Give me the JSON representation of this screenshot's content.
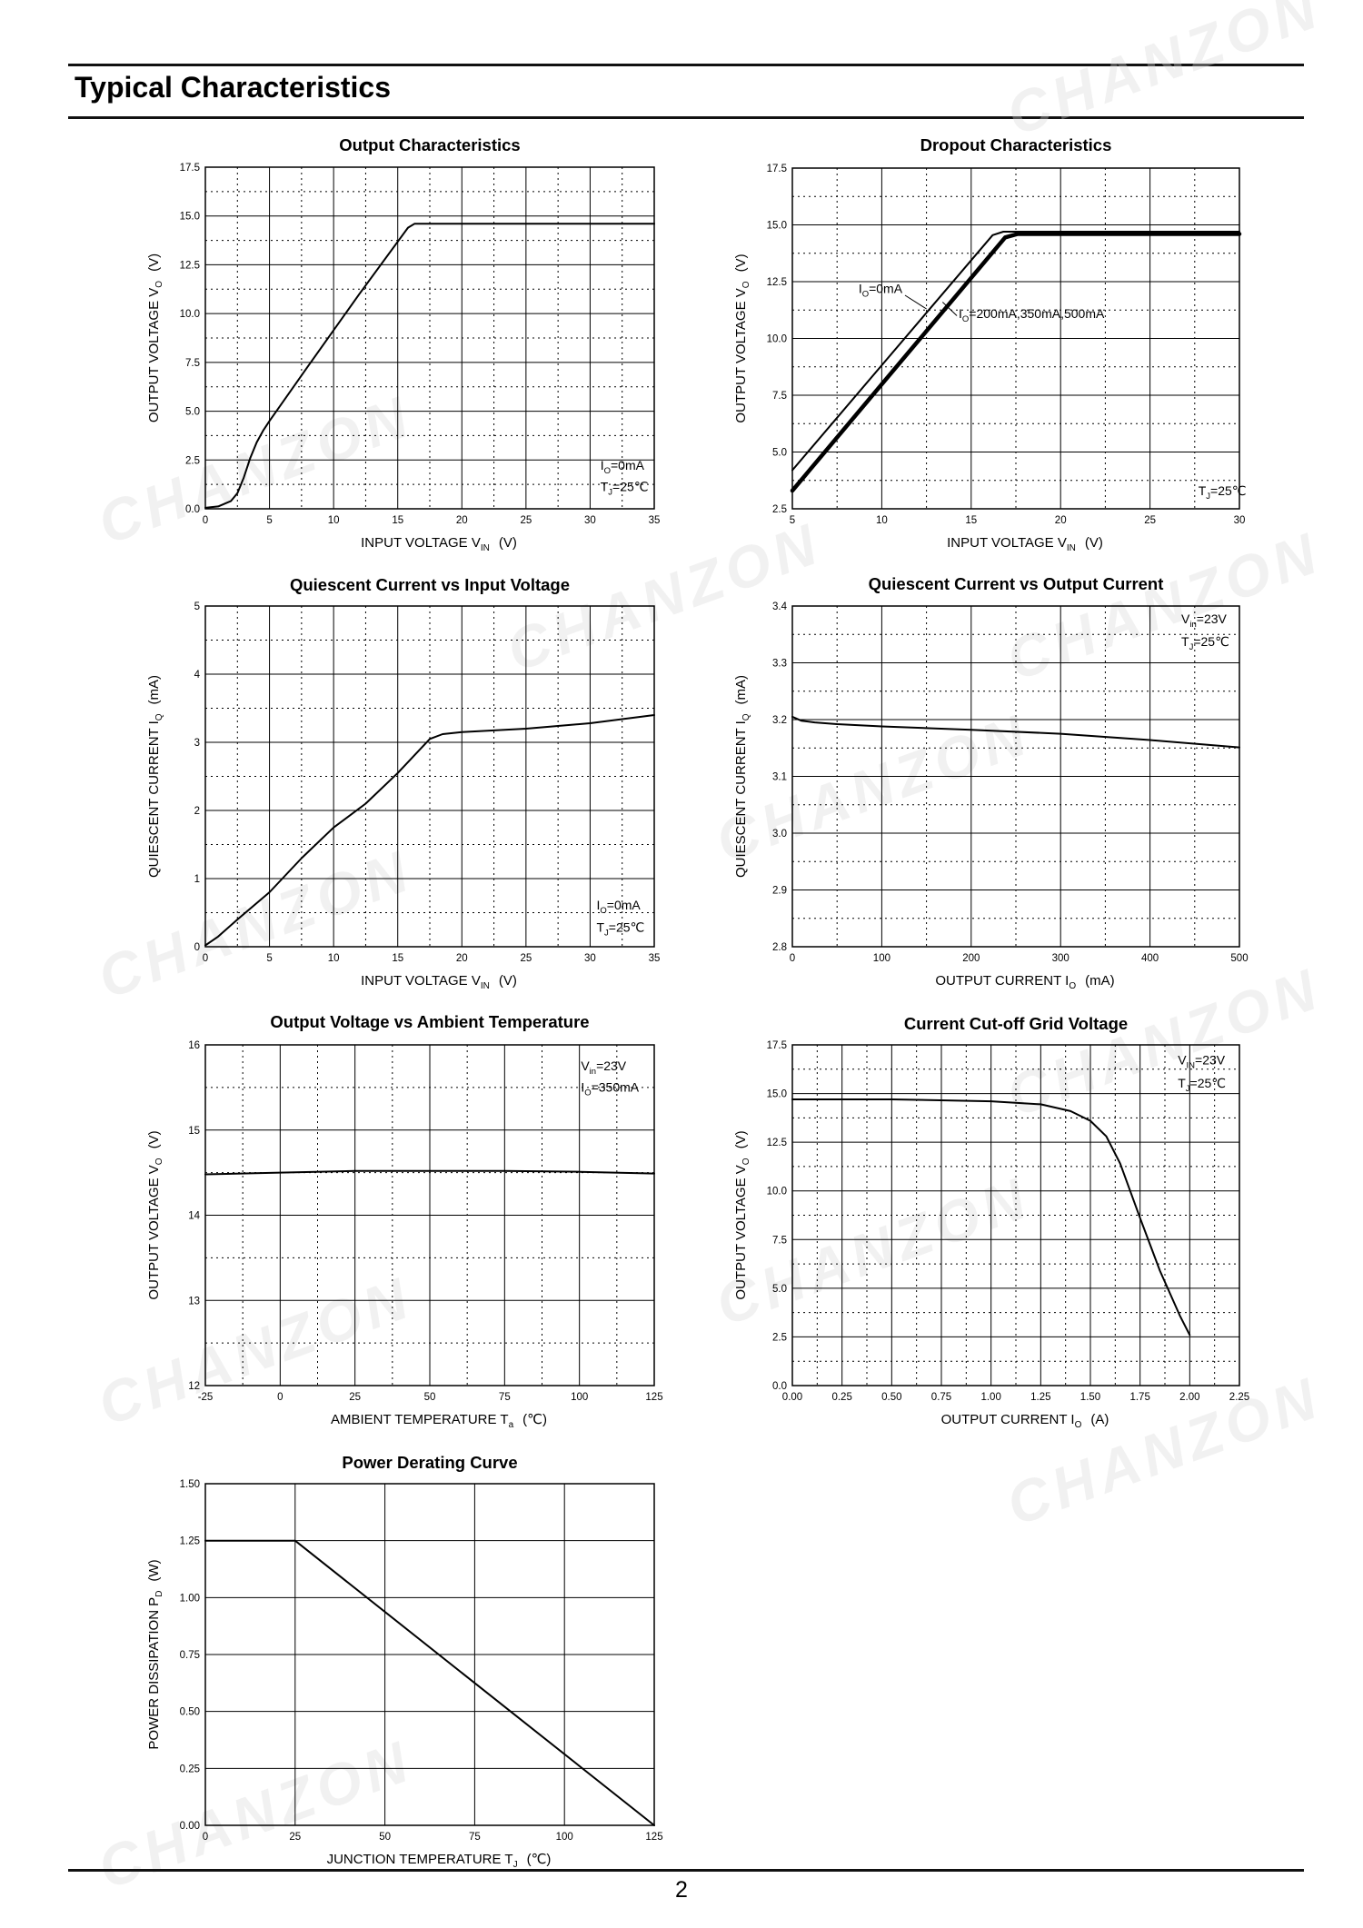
{
  "page": {
    "title": "Typical Characteristics",
    "number": "2",
    "watermark": "CHANZON"
  },
  "chart_data": [
    {
      "id": "c1",
      "type": "line",
      "title": "Output  Characteristics",
      "xlabel": {
        "main": "INPUT VOLTAGE",
        "sym": "V",
        "sub": "IN",
        "unit": "(V)"
      },
      "ylabel": {
        "main": "OUTPUT VOLTAGE",
        "sym": "V",
        "sub": "O",
        "unit": "(V)"
      },
      "xlim": [
        0,
        35
      ],
      "ylim": [
        0,
        17.5
      ],
      "xticks": [
        "0",
        "5",
        "10",
        "15",
        "20",
        "25",
        "30",
        "35"
      ],
      "yticks": [
        "0.0",
        "2.5",
        "5.0",
        "7.5",
        "10.0",
        "12.5",
        "15.0",
        "17.5"
      ],
      "xminor": 1,
      "yminor": 1,
      "annotations": [
        {
          "parts": [
            [
              "I",
              ""
            ],
            [
              "O",
              "sub"
            ],
            [
              "=0mA",
              ""
            ]
          ],
          "xv": 30.8,
          "yv": 2.0
        },
        {
          "parts": [
            [
              "T",
              ""
            ],
            [
              "J",
              "sub"
            ],
            [
              "=25℃",
              ""
            ]
          ],
          "xv": 30.8,
          "yv": 0.9
        }
      ],
      "series": [
        {
          "name": "Io=0mA",
          "width": 2,
          "x": [
            0,
            1,
            2,
            2.5,
            3,
            3.5,
            4,
            4.5,
            5,
            8,
            12,
            15.8,
            16.3,
            35
          ],
          "y": [
            0.05,
            0.12,
            0.4,
            0.8,
            1.6,
            2.6,
            3.4,
            4.0,
            4.5,
            7.3,
            11.0,
            14.4,
            14.6,
            14.6
          ]
        }
      ]
    },
    {
      "id": "c2",
      "type": "line",
      "title": "Dropout Characteristics",
      "xlabel": {
        "main": "INPUT VOLTAGE",
        "sym": "V",
        "sub": "IN",
        "unit": "(V)"
      },
      "ylabel": {
        "main": "OUTPUT VOLTAGE",
        "sym": "V",
        "sub": "O",
        "unit": "(V)"
      },
      "xlim": [
        5,
        30
      ],
      "ylim": [
        2.5,
        17.5
      ],
      "xticks": [
        "5",
        "10",
        "15",
        "20",
        "25",
        "30"
      ],
      "yticks": [
        "2.5",
        "5.0",
        "7.5",
        "10.0",
        "12.5",
        "15.0",
        "17.5"
      ],
      "xminor": 1,
      "yminor": 1,
      "annotations": [
        {
          "parts": [
            [
              "I",
              ""
            ],
            [
              "O",
              "sub"
            ],
            [
              "=0mA",
              ""
            ]
          ],
          "xv": 8.7,
          "yv": 12.0
        },
        {
          "parts": [
            [
              "I",
              ""
            ],
            [
              "O",
              "sub"
            ],
            [
              "=200mA,350mA,500mA",
              ""
            ]
          ],
          "xv": 14.3,
          "yv": 10.9
        },
        {
          "parts": [
            [
              "T",
              ""
            ],
            [
              "J",
              "sub"
            ],
            [
              "=25℃",
              ""
            ]
          ],
          "xv": 27.7,
          "yv": 3.1
        }
      ],
      "leaders": [
        {
          "x1": 11.3,
          "y1": 11.9,
          "x2": 12.5,
          "y2": 11.3
        },
        {
          "x1": 14.2,
          "y1": 11.0,
          "x2": 13.4,
          "y2": 11.6
        }
      ],
      "series": [
        {
          "name": "Io=0mA",
          "width": 2,
          "x": [
            5,
            16.2,
            16.8,
            30
          ],
          "y": [
            4.2,
            14.55,
            14.7,
            14.7
          ]
        },
        {
          "name": "Io=200mA,350mA,500mA",
          "width": 4.5,
          "x": [
            5,
            16.9,
            17.6,
            30
          ],
          "y": [
            3.3,
            14.45,
            14.6,
            14.6
          ]
        }
      ]
    },
    {
      "id": "c3",
      "type": "line",
      "title": "Quiescent Current vs Input Voltage",
      "xlabel": {
        "main": "INPUT VOLTAGE",
        "sym": "V",
        "sub": "IN",
        "unit": "(V)"
      },
      "ylabel": {
        "main": "QUIESCENT CURRENT",
        "sym": "I",
        "sub": "Q",
        "unit": "(mA)"
      },
      "xlim": [
        0,
        35
      ],
      "ylim": [
        0,
        5
      ],
      "xticks": [
        "0",
        "5",
        "10",
        "15",
        "20",
        "25",
        "30",
        "35"
      ],
      "yticks": [
        "0",
        "1",
        "2",
        "3",
        "4",
        "5"
      ],
      "xminor": 1,
      "yminor": 1,
      "annotations": [
        {
          "parts": [
            [
              "I",
              ""
            ],
            [
              "O",
              "sub"
            ],
            [
              "=0mA",
              ""
            ]
          ],
          "xv": 30.5,
          "yv": 0.55
        },
        {
          "parts": [
            [
              "T",
              ""
            ],
            [
              "J",
              "sub"
            ],
            [
              "=25℃",
              ""
            ]
          ],
          "xv": 30.5,
          "yv": 0.22
        }
      ],
      "series": [
        {
          "name": "Io=0mA",
          "width": 2,
          "x": [
            0,
            1,
            2.5,
            5,
            7.5,
            10,
            12.5,
            15,
            17.5,
            18.5,
            20,
            25,
            30,
            35
          ],
          "y": [
            0.02,
            0.15,
            0.4,
            0.8,
            1.3,
            1.75,
            2.1,
            2.55,
            3.05,
            3.12,
            3.15,
            3.2,
            3.28,
            3.4
          ]
        }
      ]
    },
    {
      "id": "c4",
      "type": "line",
      "title": "Quiescent Current vs Output Current",
      "xlabel": {
        "main": "OUTPUT CURRENT",
        "sym": "I",
        "sub": "O",
        "unit": "(mA)"
      },
      "ylabel": {
        "main": "QUIESCENT CURRENT",
        "sym": "I",
        "sub": "Q",
        "unit": "(mA)"
      },
      "xlim": [
        0,
        500
      ],
      "ylim": [
        2.8,
        3.4
      ],
      "xticks": [
        "0",
        "100",
        "200",
        "300",
        "400",
        "500"
      ],
      "yticks": [
        "2.8",
        "2.9",
        "3.0",
        "3.1",
        "3.2",
        "3.3",
        "3.4"
      ],
      "xminor": 1,
      "yminor": 1,
      "annotations": [
        {
          "parts": [
            [
              "V",
              ""
            ],
            [
              "in",
              "sub"
            ],
            [
              "=23V",
              ""
            ]
          ],
          "xv": 435,
          "yv": 3.37
        },
        {
          "parts": [
            [
              "T",
              ""
            ],
            [
              "J",
              "sub"
            ],
            [
              "=25℃",
              ""
            ]
          ],
          "xv": 435,
          "yv": 3.33
        }
      ],
      "series": [
        {
          "name": "Vin=23V",
          "width": 2,
          "x": [
            0,
            10,
            25,
            50,
            100,
            200,
            300,
            400,
            500
          ],
          "y": [
            3.205,
            3.198,
            3.195,
            3.192,
            3.188,
            3.182,
            3.175,
            3.164,
            3.151
          ]
        }
      ]
    },
    {
      "id": "c5",
      "type": "line",
      "title": "Output Voltage vs Ambient Temperature",
      "xlabel": {
        "main": "AMBIENT TEMPERATURE",
        "sym": "T",
        "sub": "a",
        "unit": "(℃)"
      },
      "ylabel": {
        "main": "OUTPUT VOLTAGE",
        "sym": "V",
        "sub": "O",
        "unit": "(V)"
      },
      "xlim": [
        -25,
        125
      ],
      "ylim": [
        12,
        16
      ],
      "xticks": [
        "-25",
        "0",
        "25",
        "50",
        "75",
        "100",
        "125"
      ],
      "yticks": [
        "12",
        "13",
        "14",
        "15",
        "16"
      ],
      "xminor": 1,
      "yminor": 1,
      "annotations": [
        {
          "parts": [
            [
              "V",
              ""
            ],
            [
              "in",
              "sub"
            ],
            [
              "=23V",
              ""
            ]
          ],
          "xv": 100.5,
          "yv": 15.7
        },
        {
          "parts": [
            [
              "I",
              ""
            ],
            [
              "O",
              "sub"
            ],
            [
              "=350mA",
              ""
            ]
          ],
          "xv": 100.5,
          "yv": 15.45
        }
      ],
      "series": [
        {
          "name": "Vin=23V, Io=350mA",
          "width": 2,
          "x": [
            -25,
            0,
            25,
            50,
            75,
            100,
            125
          ],
          "y": [
            14.48,
            14.5,
            14.52,
            14.52,
            14.52,
            14.51,
            14.49
          ]
        }
      ]
    },
    {
      "id": "c6",
      "type": "line",
      "title": "Current  Cut-off Grid Voltage",
      "xlabel": {
        "main": "OUTPUT CURRENT",
        "sym": "I",
        "sub": "O",
        "unit": "(A)"
      },
      "ylabel": {
        "main": "OUTPUT VOLTAGE",
        "sym": "V",
        "sub": "O",
        "unit": "(V)"
      },
      "xlim": [
        0,
        2.25
      ],
      "ylim": [
        0,
        17.5
      ],
      "xticks": [
        "0.00",
        "0.25",
        "0.50",
        "0.75",
        "1.00",
        "1.25",
        "1.50",
        "1.75",
        "2.00",
        "2.25"
      ],
      "yticks": [
        "0.0",
        "2.5",
        "5.0",
        "7.5",
        "10.0",
        "12.5",
        "15.0",
        "17.5"
      ],
      "xminor": 1,
      "yminor": 1,
      "annotations": [
        {
          "parts": [
            [
              "V",
              ""
            ],
            [
              "IN",
              "sub"
            ],
            [
              "=23V",
              ""
            ]
          ],
          "xv": 1.94,
          "yv": 16.5
        },
        {
          "parts": [
            [
              "T",
              ""
            ],
            [
              "J",
              "sub"
            ],
            [
              "=25℃",
              ""
            ]
          ],
          "xv": 1.94,
          "yv": 15.3
        }
      ],
      "series": [
        {
          "name": "Vin=23V",
          "width": 2,
          "x": [
            0,
            0.5,
            1.0,
            1.25,
            1.4,
            1.5,
            1.58,
            1.65,
            1.75,
            1.85,
            1.95,
            2.0
          ],
          "y": [
            14.7,
            14.7,
            14.6,
            14.45,
            14.1,
            13.6,
            12.8,
            11.4,
            8.6,
            5.9,
            3.6,
            2.6
          ]
        }
      ]
    },
    {
      "id": "c7",
      "type": "line",
      "title": "Power Derating Curve",
      "xlabel": {
        "main": "JUNCTION TEMPERATURE",
        "sym": "T",
        "sub": "J",
        "unit": "(℃)"
      },
      "ylabel": {
        "main": "POWER DISSIPATION",
        "sym": "P",
        "sub": "D",
        "unit": "(W)"
      },
      "xlim": [
        0,
        125
      ],
      "ylim": [
        0,
        1.5
      ],
      "xticks": [
        "0",
        "25",
        "50",
        "75",
        "100",
        "125"
      ],
      "yticks": [
        "0.00",
        "0.25",
        "0.50",
        "0.75",
        "1.00",
        "1.25",
        "1.50"
      ],
      "xminor": 0,
      "yminor": 0,
      "annotations": [],
      "series": [
        {
          "name": "PD",
          "width": 2,
          "x": [
            0,
            25,
            125
          ],
          "y": [
            1.25,
            1.25,
            0
          ]
        }
      ]
    }
  ]
}
